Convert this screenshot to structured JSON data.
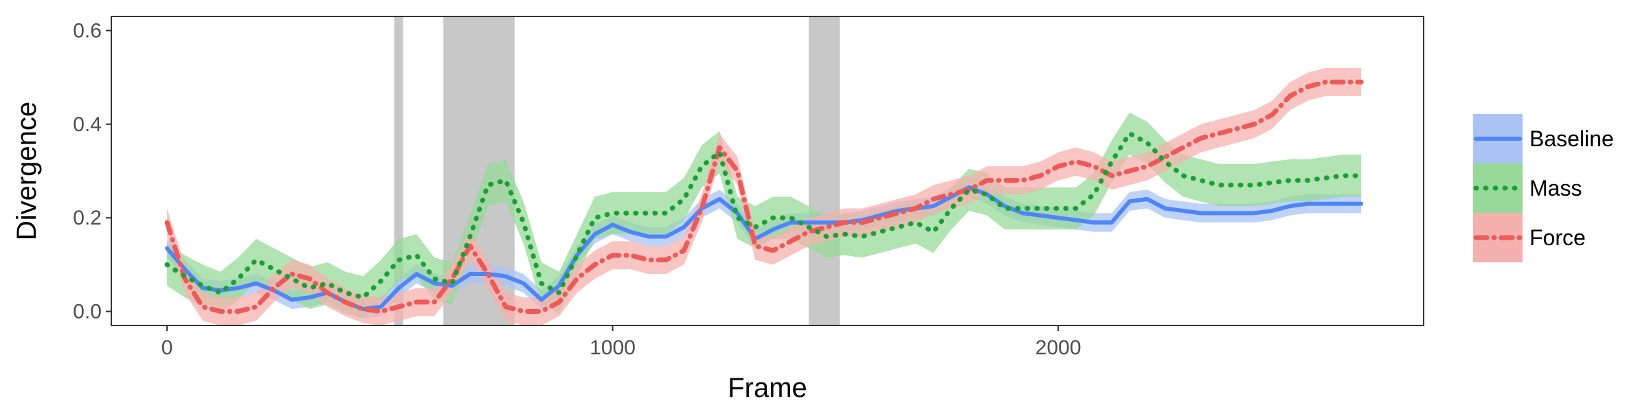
{
  "chart_data": {
    "type": "line",
    "xlabel": "Frame",
    "ylabel": "Divergence",
    "xlim": [
      -125,
      2820
    ],
    "ylim": [
      -0.03,
      0.63
    ],
    "xticks": [
      0,
      1000,
      2000
    ],
    "yticks": [
      0.0,
      0.2,
      0.4,
      0.6
    ],
    "xtick_labels": [
      "0",
      "1000",
      "2000"
    ],
    "ytick_labels": [
      "0.0",
      "0.2",
      "0.4",
      "0.6"
    ],
    "grid": false,
    "legend_position": "right",
    "shaded_regions": [
      [
        510,
        530
      ],
      [
        620,
        780
      ],
      [
        1440,
        1510
      ]
    ],
    "x": [
      0,
      40,
      80,
      120,
      160,
      200,
      240,
      280,
      320,
      360,
      400,
      440,
      480,
      520,
      560,
      600,
      640,
      680,
      720,
      760,
      800,
      840,
      880,
      920,
      960,
      1000,
      1040,
      1080,
      1120,
      1160,
      1200,
      1240,
      1280,
      1320,
      1360,
      1400,
      1440,
      1480,
      1520,
      1560,
      1600,
      1640,
      1680,
      1720,
      1760,
      1800,
      1840,
      1880,
      1920,
      1960,
      2000,
      2040,
      2080,
      2120,
      2160,
      2200,
      2240,
      2280,
      2320,
      2360,
      2400,
      2440,
      2480,
      2520,
      2560,
      2600,
      2640,
      2680
    ],
    "series": [
      {
        "name": "Baseline",
        "color": "#4f86f7",
        "fill": "#a9c3f4",
        "style": "solid",
        "values": [
          0.135,
          0.09,
          0.05,
          0.045,
          0.05,
          0.06,
          0.045,
          0.025,
          0.03,
          0.04,
          0.02,
          0.005,
          0.01,
          0.05,
          0.08,
          0.06,
          0.055,
          0.08,
          0.08,
          0.075,
          0.06,
          0.025,
          0.055,
          0.12,
          0.165,
          0.185,
          0.17,
          0.16,
          0.16,
          0.18,
          0.22,
          0.24,
          0.21,
          0.155,
          0.175,
          0.19,
          0.19,
          0.19,
          0.19,
          0.195,
          0.205,
          0.215,
          0.22,
          0.225,
          0.245,
          0.265,
          0.25,
          0.225,
          0.21,
          0.205,
          0.2,
          0.195,
          0.19,
          0.19,
          0.235,
          0.24,
          0.22,
          0.215,
          0.21,
          0.21,
          0.21,
          0.21,
          0.215,
          0.225,
          0.23,
          0.23,
          0.23,
          0.23
        ],
        "band": 0.02
      },
      {
        "name": "Mass",
        "color": "#1aa033",
        "fill": "#97d999",
        "style": "dotted",
        "values": [
          0.1,
          0.075,
          0.055,
          0.04,
          0.07,
          0.11,
          0.09,
          0.07,
          0.05,
          0.06,
          0.04,
          0.03,
          0.065,
          0.11,
          0.12,
          0.07,
          0.06,
          0.16,
          0.27,
          0.28,
          0.19,
          0.06,
          0.04,
          0.12,
          0.2,
          0.21,
          0.21,
          0.21,
          0.21,
          0.24,
          0.31,
          0.34,
          0.2,
          0.18,
          0.2,
          0.2,
          0.18,
          0.16,
          0.165,
          0.16,
          0.17,
          0.18,
          0.19,
          0.17,
          0.22,
          0.26,
          0.25,
          0.22,
          0.22,
          0.22,
          0.22,
          0.22,
          0.25,
          0.32,
          0.38,
          0.36,
          0.32,
          0.29,
          0.28,
          0.27,
          0.27,
          0.27,
          0.275,
          0.28,
          0.28,
          0.285,
          0.29,
          0.29
        ],
        "band": 0.045
      },
      {
        "name": "Force",
        "color": "#ec5a5a",
        "fill": "#f5b1ad",
        "style": "dashdot",
        "values": [
          0.19,
          0.07,
          0.01,
          0.0,
          0.0,
          0.01,
          0.05,
          0.08,
          0.07,
          0.04,
          0.02,
          0.005,
          0.0,
          0.01,
          0.02,
          0.02,
          0.07,
          0.14,
          0.08,
          0.01,
          0.0,
          0.0,
          0.02,
          0.07,
          0.1,
          0.12,
          0.12,
          0.11,
          0.11,
          0.13,
          0.22,
          0.35,
          0.3,
          0.14,
          0.13,
          0.15,
          0.17,
          0.18,
          0.19,
          0.19,
          0.2,
          0.21,
          0.22,
          0.24,
          0.25,
          0.26,
          0.28,
          0.28,
          0.28,
          0.29,
          0.31,
          0.32,
          0.31,
          0.29,
          0.3,
          0.31,
          0.33,
          0.35,
          0.37,
          0.38,
          0.39,
          0.4,
          0.42,
          0.46,
          0.48,
          0.49,
          0.49,
          0.49
        ],
        "band": 0.03
      }
    ]
  }
}
